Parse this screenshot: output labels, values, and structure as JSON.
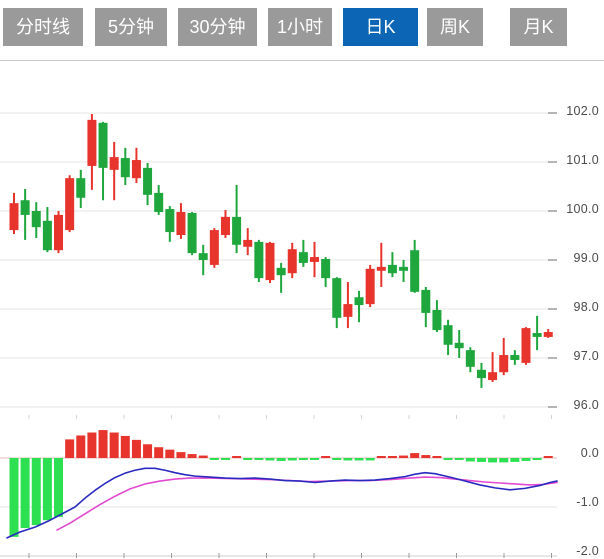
{
  "tabs": [
    {
      "label": "分时线",
      "active": false
    },
    {
      "label": "5分钟",
      "active": false
    },
    {
      "label": "30分钟",
      "active": false
    },
    {
      "label": "1小时",
      "active": false
    },
    {
      "label": "日K",
      "active": true
    },
    {
      "label": "周K",
      "active": false
    },
    {
      "label": "月K",
      "active": false
    }
  ],
  "colors": {
    "tab_bg": "#9a9a9a",
    "tab_active_bg": "#0d65b5",
    "tab_text": "#ffffff",
    "up_red": "#e7342c",
    "down_green": "#1fa73d",
    "hist_green": "#2ce052",
    "hist_red": "#e7342c",
    "dif_blue": "#2a2ac0",
    "dea_magenta": "#e24ad2",
    "grid": "#e4e4e4",
    "tick": "#9b9b9b",
    "zero_line": "#e6b8b8",
    "axis_text": "#4b4b4b"
  },
  "chart_data": {
    "type": "candlestick",
    "title": "",
    "legend_position": "none",
    "grid": true,
    "price_axis": {
      "labels": [
        "102.0",
        "101.0",
        "100.0",
        "99.0",
        "98.0",
        "97.0",
        "96.0"
      ],
      "values": [
        102,
        101,
        100,
        99,
        98,
        97,
        96
      ],
      "range": [
        95.8,
        102.9
      ]
    },
    "candles_ohlc": [
      [
        99.61,
        100.37,
        99.53,
        100.16
      ],
      [
        100.22,
        100.45,
        99.41,
        99.92
      ],
      [
        100.0,
        100.18,
        99.45,
        99.67
      ],
      [
        99.8,
        100.08,
        99.16,
        99.2
      ],
      [
        99.2,
        100.0,
        99.14,
        99.92
      ],
      [
        99.61,
        100.73,
        99.57,
        100.67
      ],
      [
        100.67,
        100.84,
        100.06,
        100.27
      ],
      [
        100.92,
        101.98,
        100.43,
        101.86
      ],
      [
        101.8,
        101.82,
        100.22,
        100.88
      ],
      [
        100.84,
        101.41,
        100.22,
        101.1
      ],
      [
        101.08,
        101.29,
        100.53,
        100.69
      ],
      [
        100.67,
        101.29,
        100.57,
        101.04
      ],
      [
        100.88,
        100.98,
        100.12,
        100.33
      ],
      [
        100.37,
        100.53,
        99.92,
        99.98
      ],
      [
        100.04,
        100.1,
        99.37,
        99.57
      ],
      [
        99.51,
        100.16,
        99.43,
        99.98
      ],
      [
        99.96,
        99.98,
        99.1,
        99.14
      ],
      [
        99.14,
        99.31,
        98.69,
        99.0
      ],
      [
        98.9,
        99.65,
        98.84,
        99.61
      ],
      [
        99.51,
        100.02,
        99.45,
        99.88
      ],
      [
        99.88,
        100.53,
        99.14,
        99.31
      ],
      [
        99.27,
        99.65,
        99.1,
        99.41
      ],
      [
        99.37,
        99.41,
        98.55,
        98.63
      ],
      [
        98.59,
        99.37,
        98.53,
        99.35
      ],
      [
        98.84,
        98.94,
        98.33,
        98.69
      ],
      [
        98.73,
        99.35,
        98.63,
        99.22
      ],
      [
        99.16,
        99.41,
        98.86,
        98.94
      ],
      [
        98.96,
        99.37,
        98.65,
        99.06
      ],
      [
        99.02,
        99.06,
        98.45,
        98.63
      ],
      [
        98.63,
        98.65,
        97.61,
        97.82
      ],
      [
        97.84,
        98.55,
        97.61,
        98.1
      ],
      [
        98.24,
        98.37,
        97.73,
        98.08
      ],
      [
        98.1,
        98.9,
        98.04,
        98.82
      ],
      [
        98.78,
        99.35,
        98.45,
        98.86
      ],
      [
        98.9,
        99.16,
        98.65,
        98.73
      ],
      [
        98.86,
        99.0,
        98.55,
        98.78
      ],
      [
        99.2,
        99.41,
        98.33,
        98.35
      ],
      [
        98.39,
        98.45,
        97.63,
        97.92
      ],
      [
        97.98,
        98.18,
        97.53,
        97.57
      ],
      [
        97.67,
        97.78,
        97.06,
        97.27
      ],
      [
        97.31,
        97.57,
        97.0,
        97.2
      ],
      [
        97.16,
        97.22,
        96.71,
        96.82
      ],
      [
        96.76,
        96.9,
        96.39,
        96.59
      ],
      [
        96.55,
        97.12,
        96.51,
        96.71
      ],
      [
        96.71,
        97.41,
        96.65,
        97.06
      ],
      [
        97.06,
        97.16,
        96.86,
        96.96
      ],
      [
        96.9,
        97.63,
        96.86,
        97.61
      ],
      [
        97.51,
        97.86,
        97.16,
        97.43
      ],
      [
        97.43,
        97.59,
        97.41,
        97.53
      ]
    ],
    "macd": {
      "axis_labels": [
        "0.0",
        "-1.0",
        "-2.0"
      ],
      "axis_values": [
        0,
        -1,
        -2
      ],
      "hist": [
        -1.61,
        -1.43,
        -1.37,
        -1.27,
        -1.2,
        0.38,
        0.46,
        0.52,
        0.57,
        0.52,
        0.45,
        0.37,
        0.28,
        0.22,
        0.17,
        0.12,
        0.08,
        0.05,
        -0.03,
        -0.03,
        0.02,
        -0.01,
        -0.04,
        -0.05,
        -0.06,
        -0.05,
        -0.04,
        -0.03,
        0.03,
        -0.01,
        -0.05,
        -0.05,
        -0.05,
        0.02,
        0.04,
        0.05,
        0.1,
        0.06,
        0.02,
        -0.02,
        -0.04,
        -0.07,
        -0.08,
        -0.09,
        -0.09,
        -0.08,
        -0.06,
        -0.03,
        0.03
      ],
      "dif": [
        [
          7,
          -1.63
        ],
        [
          20,
          -1.51
        ],
        [
          35,
          -1.41
        ],
        [
          50,
          -1.27
        ],
        [
          62,
          -1.14
        ],
        [
          75,
          -1.0
        ],
        [
          85,
          -0.82
        ],
        [
          95,
          -0.66
        ],
        [
          105,
          -0.52
        ],
        [
          115,
          -0.4
        ],
        [
          125,
          -0.31
        ],
        [
          135,
          -0.25
        ],
        [
          145,
          -0.21
        ],
        [
          155,
          -0.21
        ],
        [
          165,
          -0.25
        ],
        [
          175,
          -0.3
        ],
        [
          185,
          -0.34
        ],
        [
          195,
          -0.37
        ],
        [
          210,
          -0.39
        ],
        [
          225,
          -0.41
        ],
        [
          240,
          -0.42
        ],
        [
          255,
          -0.41
        ],
        [
          270,
          -0.43
        ],
        [
          285,
          -0.46
        ],
        [
          300,
          -0.47
        ],
        [
          315,
          -0.5
        ],
        [
          330,
          -0.47
        ],
        [
          345,
          -0.45
        ],
        [
          360,
          -0.46
        ],
        [
          375,
          -0.45
        ],
        [
          390,
          -0.42
        ],
        [
          405,
          -0.38
        ],
        [
          415,
          -0.33
        ],
        [
          425,
          -0.3
        ],
        [
          435,
          -0.32
        ],
        [
          450,
          -0.39
        ],
        [
          465,
          -0.47
        ],
        [
          480,
          -0.55
        ],
        [
          495,
          -0.61
        ],
        [
          510,
          -0.65
        ],
        [
          525,
          -0.62
        ],
        [
          540,
          -0.56
        ],
        [
          550,
          -0.5
        ],
        [
          557,
          -0.47
        ]
      ],
      "dea": [
        [
          57,
          -1.47
        ],
        [
          70,
          -1.33
        ],
        [
          85,
          -1.14
        ],
        [
          100,
          -0.95
        ],
        [
          115,
          -0.78
        ],
        [
          130,
          -0.63
        ],
        [
          145,
          -0.53
        ],
        [
          160,
          -0.47
        ],
        [
          175,
          -0.43
        ],
        [
          190,
          -0.41
        ],
        [
          210,
          -0.41
        ],
        [
          230,
          -0.42
        ],
        [
          250,
          -0.43
        ],
        [
          270,
          -0.44
        ],
        [
          290,
          -0.46
        ],
        [
          310,
          -0.48
        ],
        [
          330,
          -0.47
        ],
        [
          350,
          -0.46
        ],
        [
          370,
          -0.46
        ],
        [
          390,
          -0.44
        ],
        [
          410,
          -0.41
        ],
        [
          425,
          -0.39
        ],
        [
          440,
          -0.4
        ],
        [
          455,
          -0.43
        ],
        [
          470,
          -0.46
        ],
        [
          485,
          -0.49
        ],
        [
          500,
          -0.51
        ],
        [
          515,
          -0.53
        ],
        [
          530,
          -0.55
        ],
        [
          543,
          -0.54
        ],
        [
          557,
          -0.5
        ]
      ]
    }
  }
}
